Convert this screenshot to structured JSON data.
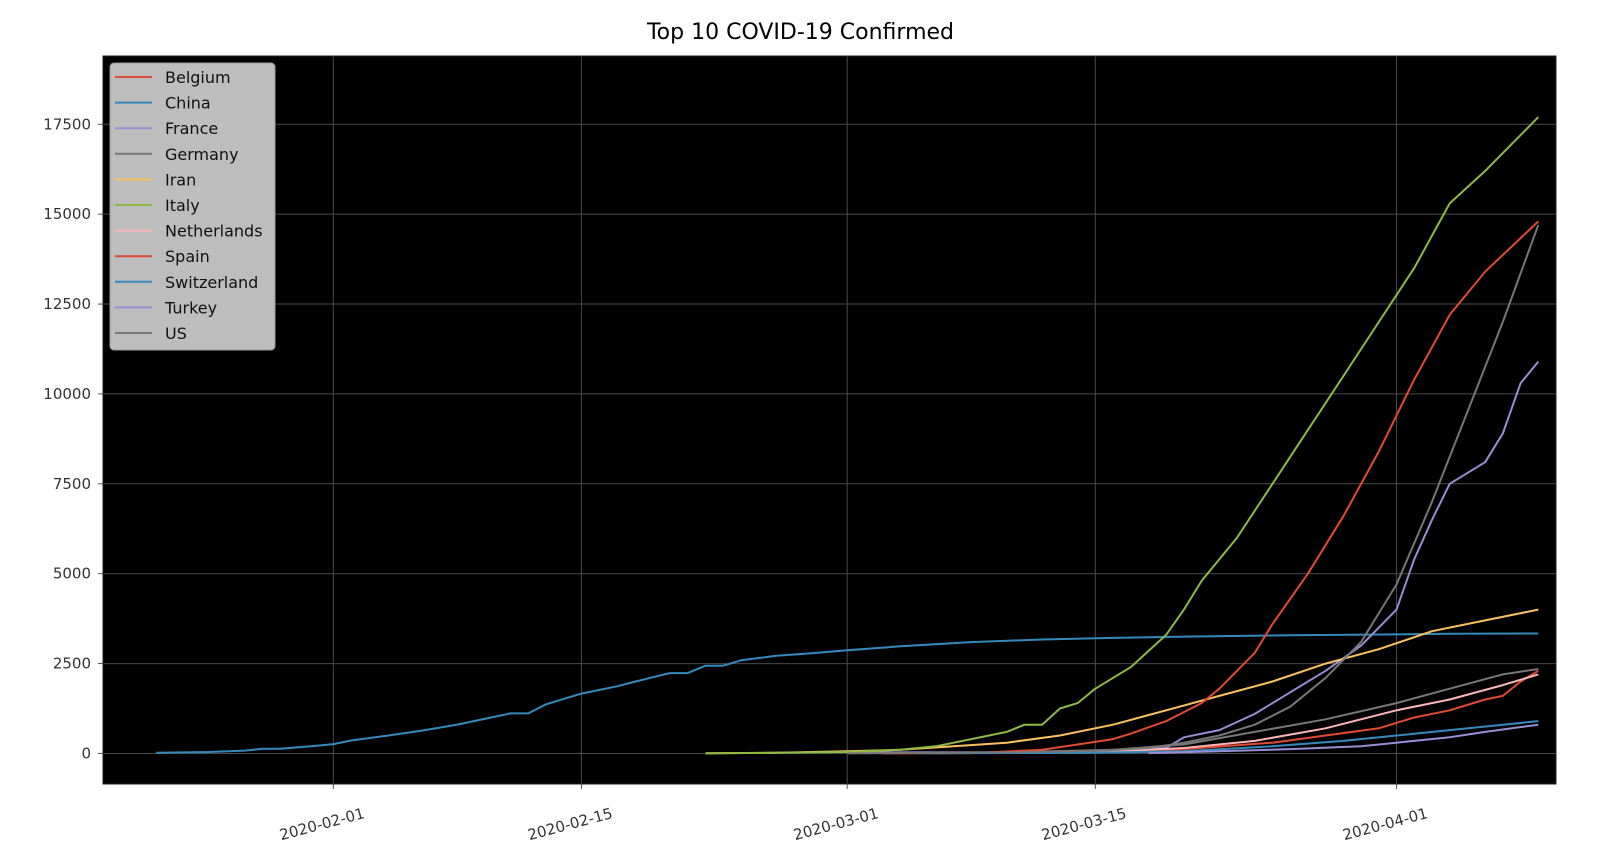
{
  "chart_data": {
    "type": "line",
    "title": "Top 10 COVID-19 Confirmed",
    "xlabel": "",
    "ylabel": "",
    "ylim": [
      -850,
      19400
    ],
    "xlim": [
      "2020-01-19",
      "2020-04-10"
    ],
    "y_ticks": [
      0,
      2500,
      5000,
      7500,
      10000,
      12500,
      15000,
      17500
    ],
    "x_ticks": [
      "2020-02-01",
      "2020-02-15",
      "2020-03-01",
      "2020-03-15",
      "2020-04-01"
    ],
    "grid": true,
    "legend_position": "top-left",
    "background": "#000000",
    "series": [
      {
        "name": "Belgium",
        "color": "#e24a33",
        "points": [
          [
            "2020-03-15",
            50
          ],
          [
            "2020-03-20",
            120
          ],
          [
            "2020-03-25",
            300
          ],
          [
            "2020-03-28",
            500
          ],
          [
            "2020-03-31",
            700
          ],
          [
            "2020-04-02",
            1000
          ],
          [
            "2020-04-04",
            1200
          ],
          [
            "2020-04-06",
            1500
          ],
          [
            "2020-04-07",
            1600
          ],
          [
            "2020-04-08",
            2000
          ],
          [
            "2020-04-09",
            2300
          ]
        ]
      },
      {
        "name": "China",
        "color": "#348abd",
        "points": [
          [
            "2020-01-22",
            17
          ],
          [
            "2020-01-25",
            40
          ],
          [
            "2020-01-27",
            80
          ],
          [
            "2020-01-28",
            130
          ],
          [
            "2020-01-29",
            133
          ],
          [
            "2020-01-31",
            210
          ],
          [
            "2020-02-01",
            260
          ],
          [
            "2020-02-02",
            361
          ],
          [
            "2020-02-04",
            490
          ],
          [
            "2020-02-06",
            636
          ],
          [
            "2020-02-08",
            803
          ],
          [
            "2020-02-10",
            1012
          ],
          [
            "2020-02-11",
            1113
          ],
          [
            "2020-02-12",
            1115
          ],
          [
            "2020-02-13",
            1368
          ],
          [
            "2020-02-15",
            1665
          ],
          [
            "2020-02-17",
            1868
          ],
          [
            "2020-02-19",
            2118
          ],
          [
            "2020-02-20",
            2236
          ],
          [
            "2020-02-21",
            2236
          ],
          [
            "2020-02-22",
            2442
          ],
          [
            "2020-02-23",
            2442
          ],
          [
            "2020-02-24",
            2592
          ],
          [
            "2020-02-26",
            2715
          ],
          [
            "2020-02-28",
            2788
          ],
          [
            "2020-03-01",
            2870
          ],
          [
            "2020-03-04",
            2981
          ],
          [
            "2020-03-08",
            3097
          ],
          [
            "2020-03-12",
            3169
          ],
          [
            "2020-03-16",
            3213
          ],
          [
            "2020-03-20",
            3249
          ],
          [
            "2020-03-26",
            3285
          ],
          [
            "2020-04-01",
            3312
          ],
          [
            "2020-04-04",
            3330
          ],
          [
            "2020-04-09",
            3335
          ]
        ]
      },
      {
        "name": "France",
        "color": "#988ed5",
        "points": [
          [
            "2020-03-01",
            30
          ],
          [
            "2020-03-10",
            35
          ],
          [
            "2020-03-15",
            80
          ],
          [
            "2020-03-19",
            150
          ],
          [
            "2020-03-20",
            450
          ],
          [
            "2020-03-22",
            650
          ],
          [
            "2020-03-24",
            1100
          ],
          [
            "2020-03-26",
            1700
          ],
          [
            "2020-03-28",
            2300
          ],
          [
            "2020-03-30",
            3000
          ],
          [
            "2020-04-01",
            4000
          ],
          [
            "2020-04-02",
            5400
          ],
          [
            "2020-04-03",
            6500
          ],
          [
            "2020-04-04",
            7500
          ],
          [
            "2020-04-06",
            8100
          ],
          [
            "2020-04-07",
            8900
          ],
          [
            "2020-04-08",
            10300
          ],
          [
            "2020-04-09",
            10900
          ]
        ]
      },
      {
        "name": "Germany",
        "color": "#777777",
        "points": [
          [
            "2020-03-10",
            30
          ],
          [
            "2020-03-16",
            100
          ],
          [
            "2020-03-20",
            250
          ],
          [
            "2020-03-24",
            600
          ],
          [
            "2020-03-28",
            950
          ],
          [
            "2020-04-01",
            1400
          ],
          [
            "2020-04-04",
            1800
          ],
          [
            "2020-04-07",
            2200
          ],
          [
            "2020-04-09",
            2350
          ]
        ]
      },
      {
        "name": "Iran",
        "color": "#fbc15e",
        "points": [
          [
            "2020-02-22",
            5
          ],
          [
            "2020-02-26",
            20
          ],
          [
            "2020-03-01",
            60
          ],
          [
            "2020-03-04",
            100
          ],
          [
            "2020-03-07",
            200
          ],
          [
            "2020-03-10",
            300
          ],
          [
            "2020-03-13",
            500
          ],
          [
            "2020-03-16",
            800
          ],
          [
            "2020-03-19",
            1200
          ],
          [
            "2020-03-22",
            1600
          ],
          [
            "2020-03-25",
            2000
          ],
          [
            "2020-03-28",
            2500
          ],
          [
            "2020-03-31",
            2900
          ],
          [
            "2020-04-03",
            3400
          ],
          [
            "2020-04-06",
            3700
          ],
          [
            "2020-04-09",
            4000
          ]
        ]
      },
      {
        "name": "Italy",
        "color": "#8eba42",
        "points": [
          [
            "2020-02-22",
            0
          ],
          [
            "2020-02-26",
            20
          ],
          [
            "2020-03-01",
            40
          ],
          [
            "2020-03-04",
            100
          ],
          [
            "2020-03-06",
            200
          ],
          [
            "2020-03-08",
            400
          ],
          [
            "2020-03-10",
            600
          ],
          [
            "2020-03-11",
            800
          ],
          [
            "2020-03-12",
            800
          ],
          [
            "2020-03-13",
            1250
          ],
          [
            "2020-03-14",
            1400
          ],
          [
            "2020-03-15",
            1800
          ],
          [
            "2020-03-17",
            2400
          ],
          [
            "2020-03-19",
            3300
          ],
          [
            "2020-03-20",
            4000
          ],
          [
            "2020-03-21",
            4800
          ],
          [
            "2020-03-23",
            6000
          ],
          [
            "2020-03-25",
            7500
          ],
          [
            "2020-03-27",
            9000
          ],
          [
            "2020-03-29",
            10500
          ],
          [
            "2020-03-31",
            12000
          ],
          [
            "2020-04-02",
            13500
          ],
          [
            "2020-04-04",
            15300
          ],
          [
            "2020-04-06",
            16200
          ],
          [
            "2020-04-08",
            17200
          ],
          [
            "2020-04-09",
            17700
          ]
        ]
      },
      {
        "name": "Netherlands",
        "color": "#ffb5b8",
        "points": [
          [
            "2020-03-06",
            10
          ],
          [
            "2020-03-15",
            30
          ],
          [
            "2020-03-20",
            150
          ],
          [
            "2020-03-24",
            350
          ],
          [
            "2020-03-28",
            700
          ],
          [
            "2020-04-01",
            1200
          ],
          [
            "2020-04-04",
            1500
          ],
          [
            "2020-04-07",
            1900
          ],
          [
            "2020-04-09",
            2200
          ]
        ]
      },
      {
        "name": "Spain",
        "color": "#e24a33",
        "points": [
          [
            "2020-03-03",
            0
          ],
          [
            "2020-03-08",
            10
          ],
          [
            "2020-03-12",
            100
          ],
          [
            "2020-03-14",
            250
          ],
          [
            "2020-03-16",
            400
          ],
          [
            "2020-03-17",
            550
          ],
          [
            "2020-03-19",
            900
          ],
          [
            "2020-03-21",
            1400
          ],
          [
            "2020-03-22",
            1800
          ],
          [
            "2020-03-24",
            2800
          ],
          [
            "2020-03-25",
            3600
          ],
          [
            "2020-03-27",
            5000
          ],
          [
            "2020-03-29",
            6600
          ],
          [
            "2020-03-31",
            8400
          ],
          [
            "2020-04-02",
            10400
          ],
          [
            "2020-04-04",
            12200
          ],
          [
            "2020-04-06",
            13400
          ],
          [
            "2020-04-09",
            14800
          ]
        ]
      },
      {
        "name": "Switzerland",
        "color": "#348abd",
        "points": [
          [
            "2020-03-05",
            5
          ],
          [
            "2020-03-15",
            20
          ],
          [
            "2020-03-20",
            60
          ],
          [
            "2020-03-25",
            200
          ],
          [
            "2020-03-29",
            350
          ],
          [
            "2020-04-01",
            500
          ],
          [
            "2020-04-04",
            650
          ],
          [
            "2020-04-07",
            800
          ],
          [
            "2020-04-09",
            900
          ]
        ]
      },
      {
        "name": "Turkey",
        "color": "#988ed5",
        "points": [
          [
            "2020-03-18",
            10
          ],
          [
            "2020-03-22",
            60
          ],
          [
            "2020-03-26",
            120
          ],
          [
            "2020-03-30",
            200
          ],
          [
            "2020-04-01",
            300
          ],
          [
            "2020-04-04",
            450
          ],
          [
            "2020-04-06",
            600
          ],
          [
            "2020-04-09",
            800
          ]
        ]
      },
      {
        "name": "US",
        "color": "#777777",
        "points": [
          [
            "2020-03-01",
            2
          ],
          [
            "2020-03-10",
            30
          ],
          [
            "2020-03-15",
            70
          ],
          [
            "2020-03-18",
            150
          ],
          [
            "2020-03-20",
            300
          ],
          [
            "2020-03-22",
            500
          ],
          [
            "2020-03-24",
            800
          ],
          [
            "2020-03-26",
            1300
          ],
          [
            "2020-03-28",
            2100
          ],
          [
            "2020-03-30",
            3100
          ],
          [
            "2020-04-01",
            4700
          ],
          [
            "2020-04-03",
            7000
          ],
          [
            "2020-04-05",
            9500
          ],
          [
            "2020-04-07",
            12000
          ],
          [
            "2020-04-09",
            14700
          ]
        ]
      }
    ]
  }
}
